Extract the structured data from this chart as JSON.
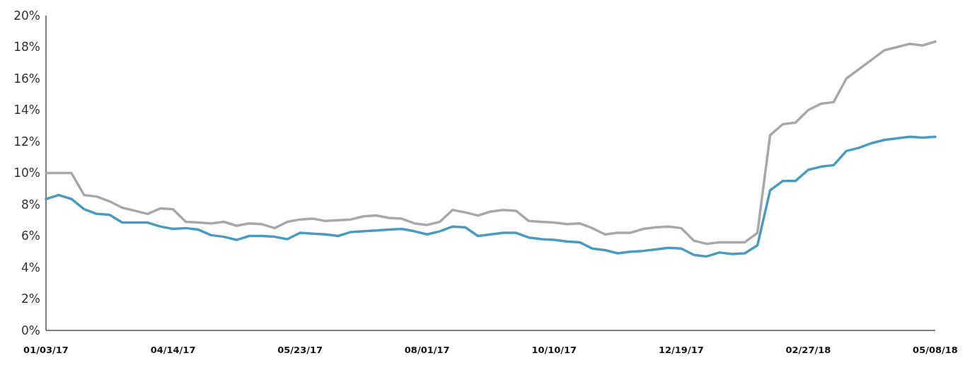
{
  "chart_data": {
    "type": "line",
    "categories": [
      "01/03/17",
      null,
      null,
      null,
      null,
      null,
      null,
      null,
      null,
      null,
      "04/14/17",
      null,
      null,
      null,
      null,
      null,
      null,
      null,
      null,
      null,
      "05/23/17",
      null,
      null,
      null,
      null,
      null,
      null,
      null,
      null,
      null,
      "08/01/17",
      null,
      null,
      null,
      null,
      null,
      null,
      null,
      null,
      null,
      "10/10/17",
      null,
      null,
      null,
      null,
      null,
      null,
      null,
      null,
      null,
      "12/19/17",
      null,
      null,
      null,
      null,
      null,
      null,
      null,
      null,
      null,
      "02/27/18",
      null,
      null,
      null,
      null,
      null,
      null,
      null,
      null,
      null,
      "05/08/18"
    ],
    "series": [
      {
        "color": "#a7a8ab",
        "values": [
          10.0,
          10.0,
          10.0,
          8.6,
          8.5,
          8.2,
          7.8,
          7.6,
          7.4,
          7.75,
          7.7,
          6.9,
          6.85,
          6.8,
          6.9,
          6.65,
          6.8,
          6.75,
          6.5,
          6.9,
          7.05,
          7.1,
          6.95,
          7.0,
          7.05,
          7.25,
          7.3,
          7.15,
          7.1,
          6.8,
          6.7,
          6.9,
          7.65,
          7.5,
          7.3,
          7.55,
          7.65,
          7.6,
          6.95,
          6.9,
          6.85,
          6.75,
          6.8,
          6.5,
          6.1,
          6.2,
          6.2,
          6.45,
          6.55,
          6.6,
          6.5,
          5.7,
          5.5,
          5.6,
          5.6,
          5.6,
          6.2,
          12.4,
          13.1,
          13.2,
          14.0,
          14.4,
          14.5,
          16.0,
          16.6,
          17.2,
          17.8,
          18.0,
          18.2,
          18.1,
          18.35
        ]
      },
      {
        "color": "#4a9bc0",
        "values": [
          8.35,
          8.6,
          8.35,
          7.7,
          7.4,
          7.35,
          6.85,
          6.85,
          6.85,
          6.6,
          6.45,
          6.5,
          6.4,
          6.05,
          5.95,
          5.75,
          6.0,
          6.0,
          5.95,
          5.8,
          6.2,
          6.15,
          6.1,
          6.0,
          6.25,
          6.3,
          6.35,
          6.4,
          6.45,
          6.3,
          6.1,
          6.3,
          6.6,
          6.55,
          6.0,
          6.1,
          6.2,
          6.2,
          5.9,
          5.8,
          5.75,
          5.65,
          5.6,
          5.2,
          5.1,
          4.9,
          5.0,
          5.05,
          5.15,
          5.25,
          5.2,
          4.8,
          4.7,
          4.95,
          4.85,
          4.9,
          5.4,
          8.9,
          9.5,
          9.5,
          10.2,
          10.4,
          10.5,
          11.4,
          11.6,
          11.9,
          12.1,
          12.2,
          12.3,
          12.25,
          12.3
        ]
      }
    ],
    "ylim": [
      0,
      20
    ],
    "yticks": [
      {
        "value": 0,
        "label": "0%"
      },
      {
        "value": 2,
        "label": "2%"
      },
      {
        "value": 4,
        "label": "4%"
      },
      {
        "value": 6,
        "label": "6%"
      },
      {
        "value": 8,
        "label": "8%"
      },
      {
        "value": 10,
        "label": "10%"
      },
      {
        "value": 12,
        "label": "12%"
      },
      {
        "value": 14,
        "label": "14%"
      },
      {
        "value": 16,
        "label": "16%"
      },
      {
        "value": 18,
        "label": "18%"
      },
      {
        "value": 20,
        "label": "20%"
      }
    ],
    "grid": false,
    "line_style": "solid",
    "marker": "none"
  }
}
